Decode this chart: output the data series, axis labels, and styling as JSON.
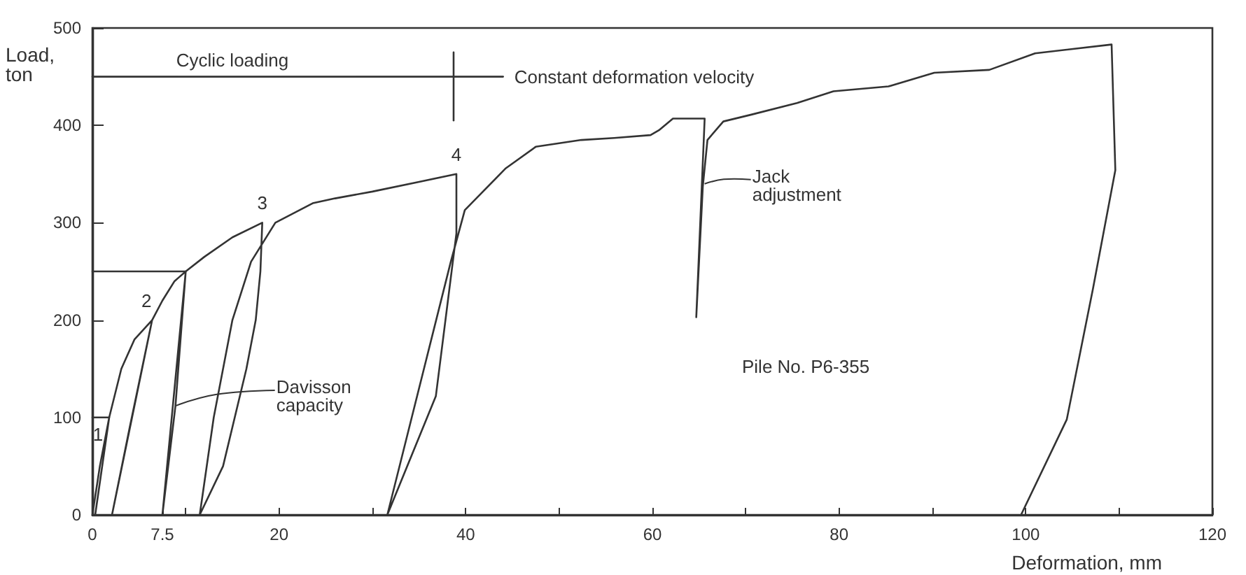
{
  "chart_data": {
    "type": "line",
    "xlabel": "Deformation, mm",
    "ylabel": "Load, ton",
    "xlim": [
      0,
      120
    ],
    "ylim": [
      0,
      500
    ],
    "xticks": [
      0,
      7.5,
      {
        "value": 10,
        "label": null
      },
      20,
      {
        "value": 30,
        "label": null
      },
      40,
      {
        "value": 50,
        "label": null
      },
      60,
      {
        "value": 70,
        "label": null
      },
      80,
      {
        "value": 90,
        "label": null
      },
      100,
      {
        "value": 110,
        "label": null
      },
      120
    ],
    "yticks": [
      0,
      100,
      200,
      300,
      400,
      500
    ],
    "grid": false,
    "marker": "none",
    "line_style": "solid",
    "series": [
      {
        "color": "#333333",
        "x": [
          0,
          0.8,
          1.8,
          0.3,
          1.8,
          3.1,
          4.5,
          6.4,
          2.1,
          4,
          6.4,
          7.5,
          8.8,
          10,
          7.5,
          8.9,
          10,
          12,
          15,
          18.2,
          18,
          17.5,
          16.5,
          14,
          11.5,
          13,
          15,
          17,
          19.6,
          23.6,
          26,
          30,
          35,
          39,
          39,
          36.8,
          31.6,
          38.4,
          39.9,
          44.3,
          47.5,
          52.4,
          55.9,
          59.8,
          60.7,
          62.2,
          65.6,
          64.7,
          65.4,
          65.9,
          67.6,
          70.6,
          75.5,
          79.4,
          85.3,
          90.2,
          96.1,
          101,
          109.2,
          109.6,
          107.2,
          104.4,
          99.5
        ],
        "values": [
          0,
          50,
          100,
          0,
          100,
          150,
          180,
          200,
          0,
          90,
          200,
          220,
          240,
          250,
          0,
          112,
          250,
          265,
          285,
          300,
          250,
          200,
          150,
          50,
          0,
          100,
          200,
          260,
          300,
          320,
          325,
          332,
          342,
          350,
          289,
          122,
          0,
          260,
          313,
          356,
          378,
          385,
          387,
          390,
          395,
          407,
          407,
          203,
          337,
          385,
          404,
          411,
          423,
          435,
          440,
          454,
          457,
          474,
          483,
          354,
          232,
          98,
          0
        ]
      },
      {
        "color": "#333333",
        "x": [
          0,
          1.8
        ],
        "values": [
          100,
          100
        ]
      },
      {
        "color": "#333333",
        "x": [
          0,
          10
        ],
        "values": [
          250,
          250
        ]
      },
      {
        "color": "#333333",
        "x": [
          0,
          44
        ],
        "values": [
          450,
          450
        ]
      },
      {
        "color": "#333333",
        "x": [
          38.7,
          38.7
        ],
        "values": [
          405,
          475
        ]
      }
    ],
    "annotations": [
      {
        "text": "Cyclic loading",
        "x": 15,
        "y": 450
      },
      {
        "text": "Constant deformation velocity",
        "x": 44,
        "y": 450
      },
      {
        "text": "Davisson capacity",
        "x": 8.9,
        "y": 112
      },
      {
        "text": "Jack adjustment",
        "x": 65.6,
        "y": 340
      },
      {
        "text": "1",
        "x": 1.8,
        "y": 100
      },
      {
        "text": "2",
        "x": 6.4,
        "y": 200
      },
      {
        "text": "3",
        "x": 18.2,
        "y": 300
      },
      {
        "text": "4",
        "x": 39,
        "y": 350
      },
      "Pile No. P6-355"
    ]
  }
}
